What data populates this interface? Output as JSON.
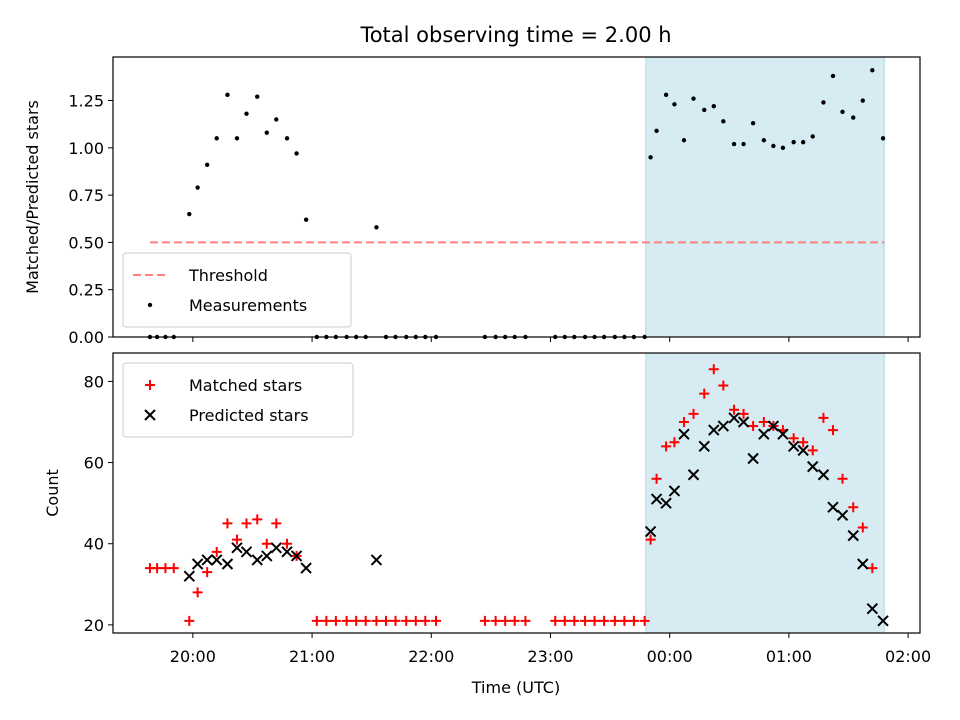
{
  "title": "Total observing time = 2.00 h",
  "x_ticks": [
    "20:00",
    "21:00",
    "22:00",
    "23:00",
    "00:00",
    "01:00",
    "02:00"
  ],
  "chart_data": [
    {
      "type": "scatter",
      "panel": "top",
      "ylabel": "Matched/Predicted stars",
      "xlim_hours": [
        19.33,
        26.1
      ],
      "ylim": [
        0,
        1.48
      ],
      "y_ticks": [
        "0.00",
        "0.25",
        "0.50",
        "0.75",
        "1.00",
        "1.25"
      ],
      "grid": false,
      "legend_position": "lower-left",
      "shaded_interval_hours": [
        23.8,
        25.8
      ],
      "threshold": {
        "name": "Threshold",
        "value": 0.5,
        "x_range_hours": [
          19.64,
          25.8
        ],
        "color": "#ff7f7f"
      },
      "series": [
        {
          "name": "Measurements",
          "color": "#000000",
          "x_hours": [
            19.64,
            19.7,
            19.77,
            19.84,
            19.97,
            20.04,
            20.12,
            20.2,
            20.29,
            20.37,
            20.45,
            20.54,
            20.62,
            20.7,
            20.79,
            20.87,
            20.95,
            21.04,
            21.12,
            21.2,
            21.29,
            21.37,
            21.45,
            21.54,
            21.62,
            21.7,
            21.79,
            21.87,
            21.95,
            22.04,
            22.45,
            22.54,
            22.62,
            22.7,
            22.79,
            23.04,
            23.12,
            23.2,
            23.29,
            23.37,
            23.45,
            23.54,
            23.62,
            23.7,
            23.79,
            23.84,
            23.89,
            23.97,
            24.04,
            24.12,
            24.2,
            24.29,
            24.37,
            24.45,
            24.54,
            24.62,
            24.7,
            24.79,
            24.87,
            24.95,
            25.04,
            25.12,
            25.2,
            25.29,
            25.37,
            25.45,
            25.54,
            25.62,
            25.7,
            25.79
          ],
          "y": [
            0,
            0,
            0,
            0,
            0.65,
            0.79,
            0.91,
            1.05,
            1.28,
            1.05,
            1.18,
            1.27,
            1.08,
            1.15,
            1.05,
            0.97,
            0.62,
            0,
            0,
            0,
            0,
            0,
            0,
            0.58,
            0,
            0,
            0,
            0,
            0,
            0,
            0,
            0,
            0,
            0,
            0,
            0,
            0,
            0,
            0,
            0,
            0,
            0,
            0,
            0,
            0,
            0.95,
            1.09,
            1.28,
            1.23,
            1.04,
            1.26,
            1.2,
            1.22,
            1.14,
            1.02,
            1.02,
            1.13,
            1.04,
            1.01,
            1.0,
            1.03,
            1.03,
            1.06,
            1.24,
            1.38,
            1.19,
            1.16,
            1.25,
            1.41,
            1.05
          ]
        }
      ]
    },
    {
      "type": "scatter",
      "panel": "bottom",
      "xlabel": "Time (UTC)",
      "ylabel": "Count",
      "xlim_hours": [
        19.33,
        26.1
      ],
      "ylim": [
        18,
        87
      ],
      "y_ticks": [
        "20",
        "40",
        "60",
        "80"
      ],
      "grid": false,
      "legend_position": "upper-left",
      "shaded_interval_hours": [
        23.8,
        25.8
      ],
      "series": [
        {
          "name": "Matched stars",
          "marker": "plus",
          "color": "#ff0000",
          "x_hours": [
            19.64,
            19.7,
            19.77,
            19.84,
            19.97,
            20.04,
            20.12,
            20.2,
            20.29,
            20.37,
            20.45,
            20.54,
            20.62,
            20.7,
            20.79,
            20.87,
            21.04,
            21.12,
            21.2,
            21.29,
            21.37,
            21.45,
            21.54,
            21.62,
            21.7,
            21.79,
            21.87,
            21.95,
            22.04,
            22.45,
            22.54,
            22.62,
            22.7,
            22.79,
            23.04,
            23.12,
            23.2,
            23.29,
            23.37,
            23.45,
            23.54,
            23.62,
            23.7,
            23.79,
            23.84,
            23.89,
            23.97,
            24.04,
            24.12,
            24.2,
            24.29,
            24.37,
            24.45,
            24.54,
            24.62,
            24.7,
            24.79,
            24.87,
            24.95,
            25.04,
            25.12,
            25.2,
            25.29,
            25.37,
            25.45,
            25.54,
            25.62,
            25.7
          ],
          "y": [
            34,
            34,
            34,
            34,
            21,
            28,
            33,
            38,
            45,
            41,
            45,
            46,
            40,
            45,
            40,
            37,
            21,
            21,
            21,
            21,
            21,
            21,
            21,
            21,
            21,
            21,
            21,
            21,
            21,
            21,
            21,
            21,
            21,
            21,
            21,
            21,
            21,
            21,
            21,
            21,
            21,
            21,
            21,
            21,
            41,
            56,
            64,
            65,
            70,
            72,
            77,
            83,
            79,
            73,
            72,
            69,
            70,
            69,
            68,
            66,
            65,
            63,
            71,
            68,
            56,
            49,
            44,
            34
          ]
        },
        {
          "name": "Predicted stars",
          "marker": "x",
          "color": "#000000",
          "x_hours": [
            19.97,
            20.04,
            20.12,
            20.2,
            20.29,
            20.37,
            20.45,
            20.54,
            20.62,
            20.7,
            20.79,
            20.87,
            20.95,
            21.54,
            23.84,
            23.89,
            23.97,
            24.04,
            24.12,
            24.2,
            24.29,
            24.37,
            24.45,
            24.54,
            24.62,
            24.7,
            24.79,
            24.87,
            24.95,
            25.04,
            25.12,
            25.2,
            25.29,
            25.37,
            25.45,
            25.54,
            25.62,
            25.7,
            25.79
          ],
          "y": [
            32,
            35,
            36,
            36,
            35,
            39,
            38,
            36,
            37,
            39,
            38,
            37,
            34,
            36,
            43,
            51,
            50,
            53,
            67,
            57,
            64,
            68,
            69,
            71,
            70,
            61,
            67,
            69,
            67,
            64,
            63,
            59,
            57,
            49,
            47,
            42,
            35,
            24,
            21
          ]
        }
      ]
    }
  ]
}
